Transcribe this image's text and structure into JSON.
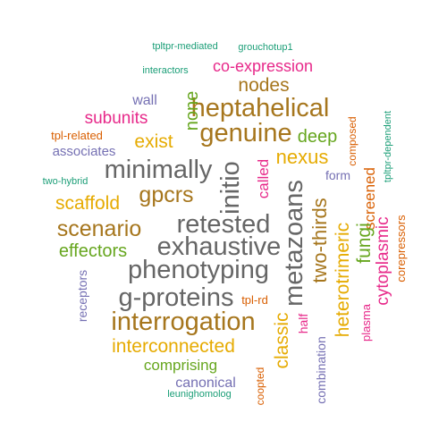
{
  "palette": {
    "green": "#1b9e77",
    "orange": "#d95f02",
    "purple": "#7570b3",
    "magenta": "#e7298a",
    "lime": "#66a61e",
    "gold": "#e6ab02",
    "brown": "#a6761d",
    "gray": "#666666"
  },
  "words": [
    {
      "text": "tpltpr-mediated",
      "color": "green"
    },
    {
      "text": "grouchotup1",
      "color": "green"
    },
    {
      "text": "co-expression",
      "color": "magenta"
    },
    {
      "text": "interactors",
      "color": "green"
    },
    {
      "text": "nodes",
      "color": "brown"
    },
    {
      "text": "wall",
      "color": "purple"
    },
    {
      "text": "none",
      "color": "lime"
    },
    {
      "text": "heptahelical",
      "color": "brown"
    },
    {
      "text": "subunits",
      "color": "magenta"
    },
    {
      "text": "composed",
      "color": "orange"
    },
    {
      "text": "genuine",
      "color": "brown"
    },
    {
      "text": "deep",
      "color": "lime"
    },
    {
      "text": "tpl-related",
      "color": "orange"
    },
    {
      "text": "exist",
      "color": "gold"
    },
    {
      "text": "tpltpr-dependent",
      "color": "green"
    },
    {
      "text": "associates",
      "color": "purple"
    },
    {
      "text": "nexus",
      "color": "gold"
    },
    {
      "text": "minimally",
      "color": "gray"
    },
    {
      "text": "initio",
      "color": "gray"
    },
    {
      "text": "called",
      "color": "magenta"
    },
    {
      "text": "screened",
      "color": "orange"
    },
    {
      "text": "two-hybrid",
      "color": "green"
    },
    {
      "text": "form",
      "color": "purple"
    },
    {
      "text": "scaffold",
      "color": "gold"
    },
    {
      "text": "gpcrs",
      "color": "brown"
    },
    {
      "text": "metazoans",
      "color": "gray"
    },
    {
      "text": "two-thirds",
      "color": "brown"
    },
    {
      "text": "corepressors",
      "color": "orange"
    },
    {
      "text": "retested",
      "color": "gray"
    },
    {
      "text": "scenario",
      "color": "brown"
    },
    {
      "text": "fungi",
      "color": "lime"
    },
    {
      "text": "cytoplasmic",
      "color": "magenta"
    },
    {
      "text": "exhaustive",
      "color": "gray"
    },
    {
      "text": "effectors",
      "color": "lime"
    },
    {
      "text": "heterotrimeric",
      "color": "gold"
    },
    {
      "text": "phenotyping",
      "color": "gray"
    },
    {
      "text": "receptors",
      "color": "purple"
    },
    {
      "text": "g-proteins",
      "color": "gray"
    },
    {
      "text": "tpl-rd",
      "color": "orange"
    },
    {
      "text": "classic",
      "color": "gold"
    },
    {
      "text": "half",
      "color": "magenta"
    },
    {
      "text": "plasma",
      "color": "magenta"
    },
    {
      "text": "interrogation",
      "color": "brown"
    },
    {
      "text": "interconnected",
      "color": "gold"
    },
    {
      "text": "combination",
      "color": "purple"
    },
    {
      "text": "comprising",
      "color": "lime"
    },
    {
      "text": "canonical",
      "color": "purple"
    },
    {
      "text": "coopted",
      "color": "orange"
    },
    {
      "text": "leunighomolog",
      "color": "green"
    }
  ]
}
